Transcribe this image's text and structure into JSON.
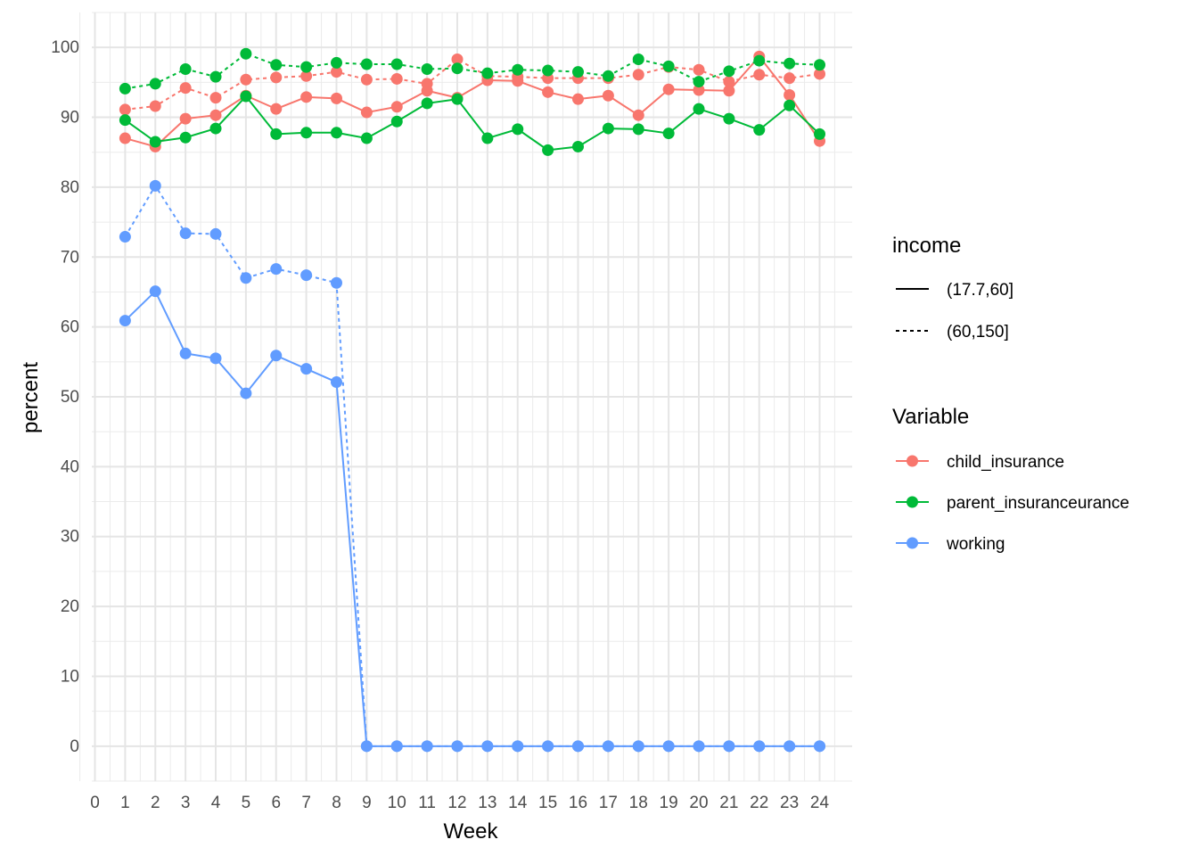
{
  "chart_data": {
    "type": "line",
    "xlabel": "Week",
    "ylabel": "percent",
    "xlim": [
      0,
      24
    ],
    "ylim": [
      -5,
      105
    ],
    "x_ticks": [
      0,
      1,
      2,
      3,
      4,
      5,
      6,
      7,
      8,
      9,
      10,
      11,
      12,
      13,
      14,
      15,
      16,
      17,
      18,
      19,
      20,
      21,
      22,
      23,
      24
    ],
    "y_ticks": [
      0,
      10,
      20,
      30,
      40,
      50,
      60,
      70,
      80,
      90,
      100
    ],
    "grid": true,
    "legend_position": "right",
    "legends": {
      "income": {
        "title": "income",
        "entries": [
          {
            "label": "(17.7,60]",
            "linetype": "solid"
          },
          {
            "label": "(60,150]",
            "linetype": "dashed"
          }
        ]
      },
      "variable": {
        "title": "Variable",
        "entries": [
          {
            "label": "child_insurance",
            "color": "#F8766D"
          },
          {
            "label": "parent_insuranceurance",
            "color": "#00BA38"
          },
          {
            "label": "working",
            "color": "#619CFF"
          }
        ]
      }
    },
    "x": [
      1,
      2,
      3,
      4,
      5,
      6,
      7,
      8,
      9,
      10,
      11,
      12,
      13,
      14,
      15,
      16,
      17,
      18,
      19,
      20,
      21,
      22,
      23,
      24
    ],
    "series": [
      {
        "variable": "child_insurance",
        "income": "(17.7,60]",
        "color": "#F8766D",
        "linetype": "solid",
        "values": [
          87.0,
          85.8,
          89.8,
          90.3,
          93.1,
          91.2,
          92.9,
          92.7,
          90.7,
          91.5,
          93.8,
          92.8,
          95.3,
          95.2,
          93.6,
          92.6,
          93.1,
          90.3,
          94.0,
          93.9,
          93.8,
          98.7,
          93.2,
          86.6
        ]
      },
      {
        "variable": "child_insurance",
        "income": "(60,150]",
        "color": "#F8766D",
        "linetype": "dashed",
        "values": [
          91.1,
          91.6,
          94.2,
          92.8,
          95.4,
          95.7,
          95.9,
          96.5,
          95.4,
          95.5,
          94.8,
          98.3,
          95.9,
          95.8,
          95.6,
          95.6,
          95.6,
          96.1,
          97.2,
          96.8,
          95.1,
          96.1,
          95.6,
          96.2
        ]
      },
      {
        "variable": "parent_insuranceurance",
        "income": "(17.7,60]",
        "color": "#00BA38",
        "linetype": "solid",
        "values": [
          89.6,
          86.5,
          87.1,
          88.4,
          93.0,
          87.6,
          87.8,
          87.8,
          87.0,
          89.4,
          92.0,
          92.6,
          87.0,
          88.3,
          85.3,
          85.8,
          88.4,
          88.3,
          87.7,
          91.2,
          89.8,
          88.2,
          91.7,
          87.6
        ]
      },
      {
        "variable": "parent_insuranceurance",
        "income": "(60,150]",
        "color": "#00BA38",
        "linetype": "dashed",
        "values": [
          94.1,
          94.8,
          96.9,
          95.8,
          99.1,
          97.5,
          97.2,
          97.8,
          97.6,
          97.6,
          96.9,
          97.0,
          96.3,
          96.8,
          96.7,
          96.5,
          95.9,
          98.3,
          97.3,
          95.1,
          96.6,
          98.1,
          97.7,
          97.5
        ]
      },
      {
        "variable": "working",
        "income": "(17.7,60]",
        "color": "#619CFF",
        "linetype": "solid",
        "values": [
          60.9,
          65.1,
          56.2,
          55.5,
          50.5,
          55.9,
          54.0,
          52.1,
          0,
          0,
          0,
          0,
          0,
          0,
          0,
          0,
          0,
          0,
          0,
          0,
          0,
          0,
          0,
          0
        ]
      },
      {
        "variable": "working",
        "income": "(60,150]",
        "color": "#619CFF",
        "linetype": "dashed",
        "values": [
          72.9,
          80.2,
          73.4,
          73.3,
          67.0,
          68.3,
          67.4,
          66.3,
          0,
          0,
          0,
          0,
          0,
          0,
          0,
          0,
          0,
          0,
          0,
          0,
          0,
          0,
          0,
          0
        ]
      }
    ]
  }
}
